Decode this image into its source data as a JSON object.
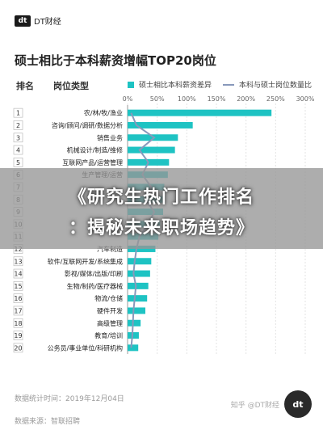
{
  "header": {
    "logo_mark": "dt",
    "logo_text": "DT财经"
  },
  "columns": {
    "rank": "排名",
    "position": "岗位类型"
  },
  "legend": {
    "bar": "硕士相比本科薪资差异",
    "line": "本科与硕士岗位数量比"
  },
  "banner": {
    "line1": "《研究生热门工作排名",
    "line2": "：揭秘未来职场趋势》"
  },
  "footer": {
    "stat_time": "数据统计时间：2019年12月04日",
    "source": "数据来源：智联招聘"
  },
  "watermark": {
    "logo": "dt",
    "text": "知乎 @DT财经"
  },
  "colors": {
    "bar": "#1ec3c3",
    "line": "#8899bb",
    "banner": "#969696"
  },
  "chart_data": {
    "type": "bar",
    "title": "硕士相比于本科薪资增幅TOP20岗位",
    "x_ticks": [
      "0%",
      "50%",
      "100%",
      "150%",
      "200%",
      "250%",
      "300%"
    ],
    "xlim": [
      0,
      300
    ],
    "ranks": [
      "1",
      "2",
      "3",
      "4",
      "5",
      "6",
      "7",
      "8",
      "9",
      "10",
      "11",
      "12",
      "13",
      "14",
      "15",
      "16",
      "17",
      "18",
      "19",
      "20"
    ],
    "categories": [
      "农/林/牧/渔业",
      "咨询/顾问/调研/数据分析",
      "销售业务",
      "机械设计/制造/维修",
      "互联网产品/运营管理",
      "生产管理/运营",
      "",
      "",
      "",
      "",
      "",
      "汽车制造",
      "软件/互联网开发/系统集成",
      "影视/媒体/出版/印刷",
      "生物/制药/医疗器械",
      "物流/仓储",
      "硬件开发",
      "高级管理",
      "教育/培训",
      "公务员/事业单位/科研机构"
    ],
    "series": [
      {
        "name": "硕士相比本科薪资差异",
        "type": "bar",
        "values": [
          243,
          110,
          85,
          80,
          70,
          68,
          62,
          62,
          60,
          55,
          52,
          47,
          40,
          38,
          35,
          33,
          30,
          22,
          19,
          18
        ]
      },
      {
        "name": "本科与硕士岗位数量比",
        "type": "line",
        "values": [
          6,
          15,
          45,
          20,
          35,
          25,
          40,
          30,
          45,
          35,
          20,
          15,
          12,
          10,
          14,
          12,
          10,
          9,
          8,
          6
        ]
      }
    ]
  }
}
